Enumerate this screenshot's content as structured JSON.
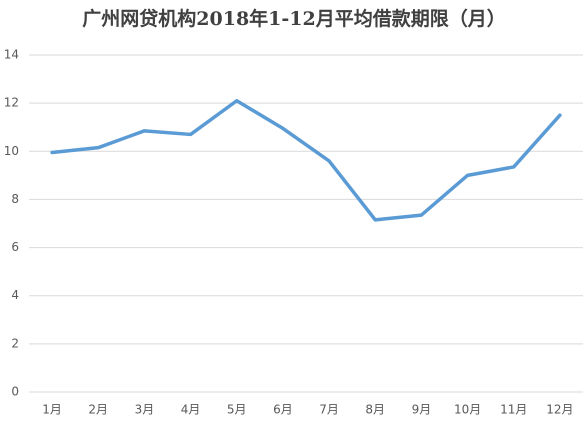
{
  "chart_data": {
    "type": "line",
    "title": "广州网贷机构2018年1-12月平均借款期限（月）",
    "categories": [
      "1月",
      "2月",
      "3月",
      "4月",
      "5月",
      "6月",
      "7月",
      "8月",
      "9月",
      "10月",
      "11月",
      "12月"
    ],
    "values": [
      9.95,
      10.15,
      10.85,
      10.7,
      12.1,
      10.95,
      9.6,
      7.15,
      7.35,
      9.0,
      9.35,
      11.5
    ],
    "color": "#5b9bd5",
    "ylim": [
      0,
      14
    ],
    "yticks": [
      0,
      2,
      4,
      6,
      8,
      10,
      12,
      14
    ],
    "grid": true
  }
}
